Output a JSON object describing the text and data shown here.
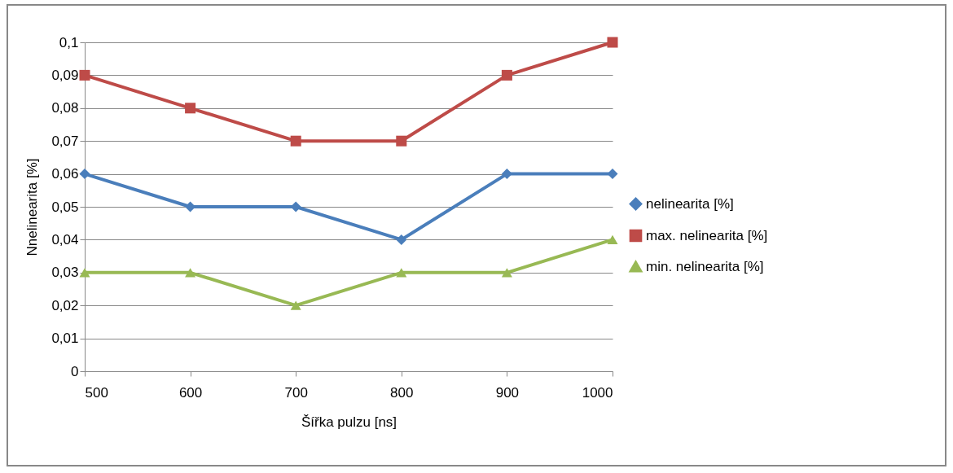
{
  "chart_data": {
    "type": "line",
    "xlabel": "Šířka pulzu [ns]",
    "ylabel": "Nnelinearita [%]",
    "x": [
      500,
      600,
      700,
      800,
      900,
      1000
    ],
    "xlim": [
      500,
      1000
    ],
    "xticks": [
      500,
      600,
      700,
      800,
      900,
      1000
    ],
    "ylim": [
      0,
      0.1
    ],
    "yticks": [
      0,
      {
        "value": 0.01,
        "label": "0,01"
      },
      {
        "value": 0.02,
        "label": "0,02"
      },
      {
        "value": 0.03,
        "label": "0,03"
      },
      {
        "value": 0.04,
        "label": "0,04"
      },
      {
        "value": 0.05,
        "label": "0,05"
      },
      {
        "value": 0.06,
        "label": "0,06"
      },
      {
        "value": 0.07,
        "label": "0,07"
      },
      {
        "value": 0.08,
        "label": "0,08"
      },
      {
        "value": 0.09,
        "label": "0,09"
      },
      {
        "value": 0.1,
        "label": "0,1"
      }
    ],
    "grid": "y",
    "legend": "right",
    "line_style": "solid",
    "series": [
      {
        "name": "nelinearita [%]",
        "color": "#4a7ebb",
        "marker": "diamond",
        "values": [
          0.06,
          0.05,
          0.05,
          0.04,
          0.06,
          0.06
        ]
      },
      {
        "name": "max. nelinearita [%]",
        "color": "#be4b48",
        "marker": "square",
        "values": [
          0.09,
          0.08,
          0.07,
          0.07,
          0.09,
          0.1
        ]
      },
      {
        "name": "min. nelinearita [%]",
        "color": "#98b954",
        "marker": "triangle",
        "values": [
          0.03,
          0.03,
          0.02,
          0.03,
          0.03,
          0.04
        ]
      }
    ]
  }
}
